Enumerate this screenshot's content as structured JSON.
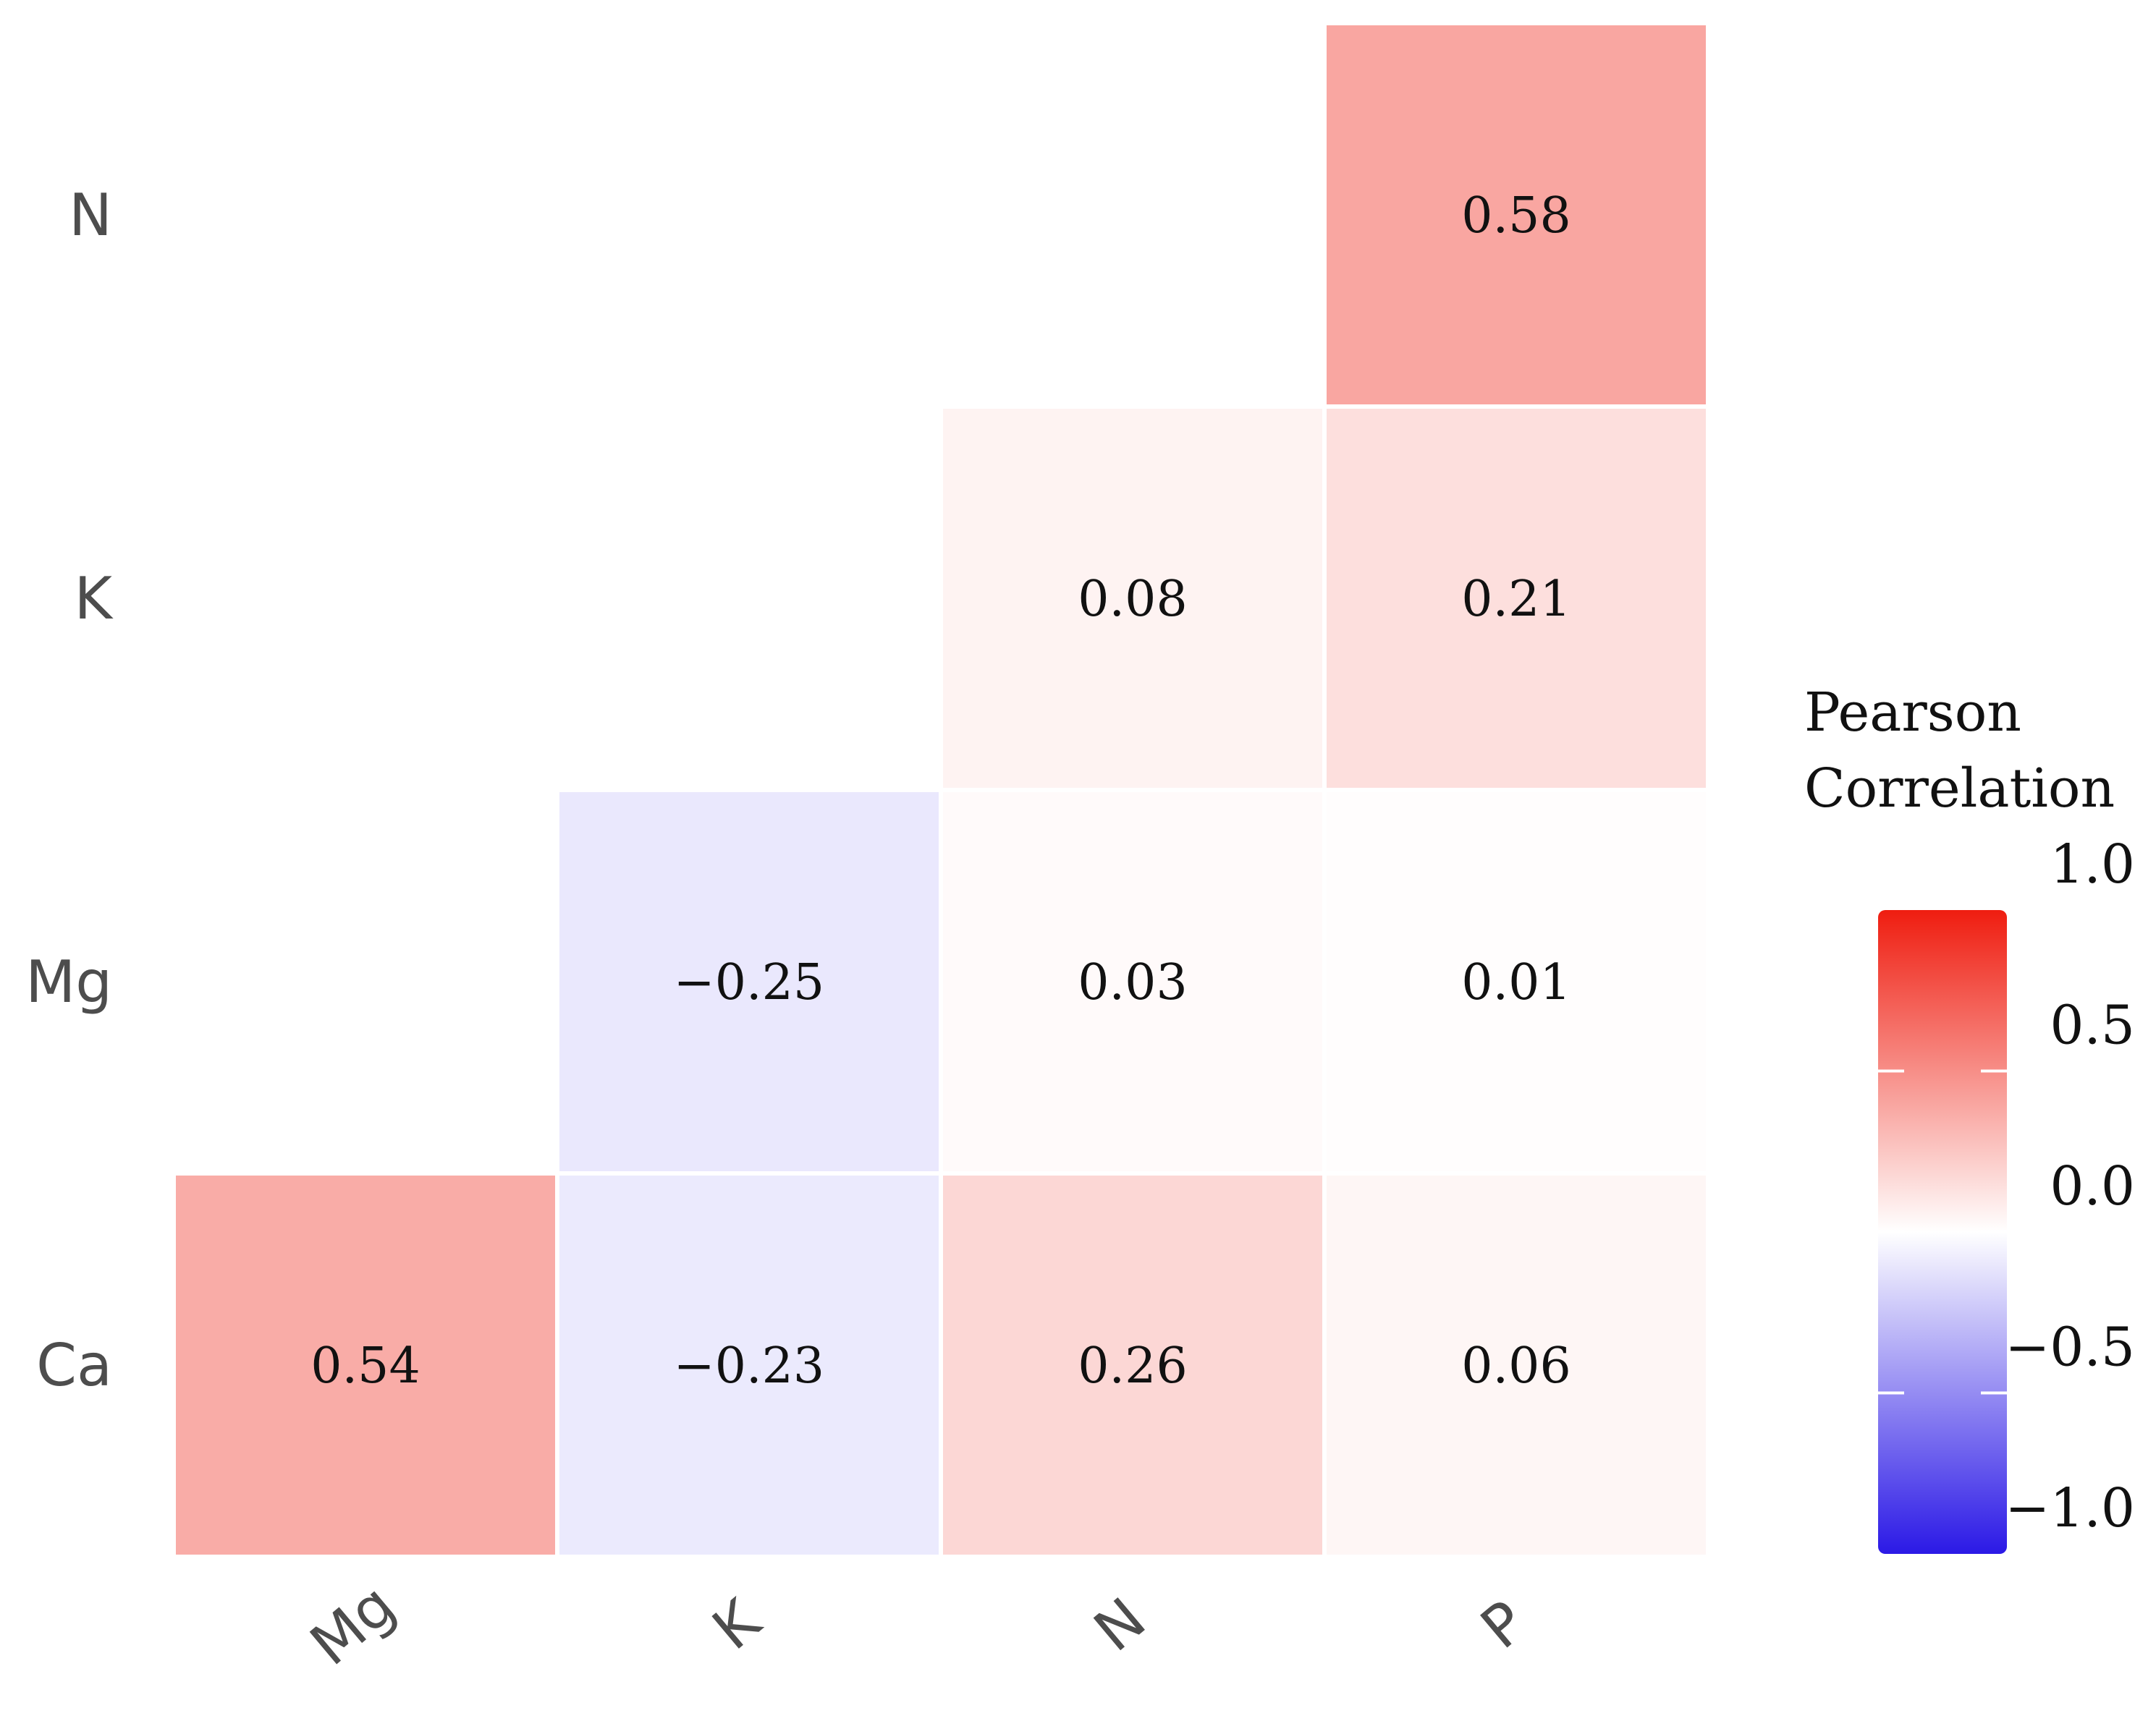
{
  "chart_data": {
    "type": "heatmap",
    "title": "",
    "row_labels": [
      "N",
      "K",
      "Mg",
      "Ca"
    ],
    "col_labels": [
      "Mg",
      "K",
      "N",
      "P"
    ],
    "cells": [
      {
        "row": "N",
        "col": "P",
        "value": 0.58,
        "label": "0.58"
      },
      {
        "row": "K",
        "col": "N",
        "value": 0.08,
        "label": "0.08"
      },
      {
        "row": "K",
        "col": "P",
        "value": 0.21,
        "label": "0.21"
      },
      {
        "row": "Mg",
        "col": "K",
        "value": -0.25,
        "label": "−0.25"
      },
      {
        "row": "Mg",
        "col": "N",
        "value": 0.03,
        "label": "0.03"
      },
      {
        "row": "Mg",
        "col": "P",
        "value": 0.01,
        "label": "0.01"
      },
      {
        "row": "Ca",
        "col": "Mg",
        "value": 0.54,
        "label": "0.54"
      },
      {
        "row": "Ca",
        "col": "K",
        "value": -0.23,
        "label": "−0.23"
      },
      {
        "row": "Ca",
        "col": "N",
        "value": 0.26,
        "label": "0.26"
      },
      {
        "row": "Ca",
        "col": "P",
        "value": 0.06,
        "label": "0.06"
      }
    ],
    "legend": {
      "title_line1": "Pearson",
      "title_line2": "Correlation",
      "range": [
        -1.0,
        1.0
      ],
      "ticks": [
        {
          "value": 1.0,
          "label": "1.0"
        },
        {
          "value": 0.5,
          "label": "0.5"
        },
        {
          "value": 0.0,
          "label": "0.0"
        },
        {
          "value": -0.5,
          "label": "−0.5"
        },
        {
          "value": -1.0,
          "label": "−1.0"
        }
      ],
      "colors": {
        "low": "#2b19e6",
        "mid": "#ffffff",
        "high": "#ef1d10"
      }
    },
    "legend_position": "right"
  }
}
